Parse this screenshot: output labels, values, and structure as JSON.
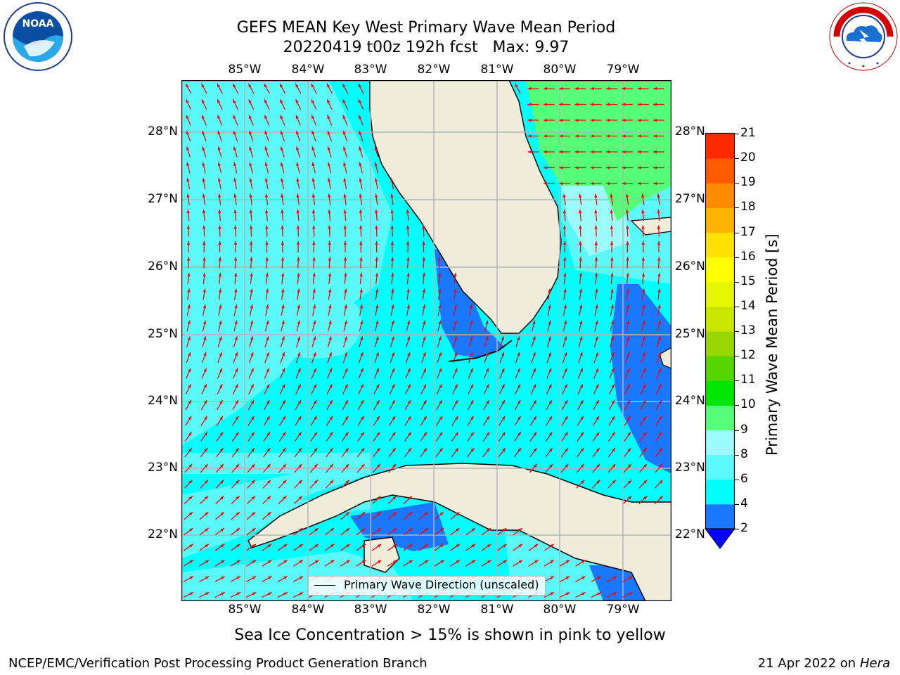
{
  "header": {
    "title_line1": "GEFS MEAN Key West Primary Wave Mean Period",
    "title_line2": "20220419 t00z 192h fcst   Max: 9.97"
  },
  "logos": {
    "noaa_text": "NOAA",
    "noaa_ring_text": "NATIONAL OCEANIC AND ATMOSPHERIC ADMINISTRATION · U.S. DEPARTMENT OF COMMERCE",
    "nws_ring_text": "NATIONAL WEATHER SERVICE"
  },
  "map": {
    "x_ticks": [
      "85°W",
      "84°W",
      "83°W",
      "82°W",
      "81°W",
      "80°W",
      "79°W"
    ],
    "y_ticks": [
      "28°N",
      "27°N",
      "26°N",
      "25°N",
      "24°N",
      "23°N",
      "22°N"
    ],
    "legend_label": "Primary Wave Direction (unscaled)",
    "arrow_color": "#ff0000",
    "land_color": "#efecdc"
  },
  "colorbar": {
    "label": "Primary Wave Mean Period [s]",
    "ticks": [
      "2",
      "4",
      "6",
      "8",
      "9",
      "10",
      "11",
      "12",
      "13",
      "14",
      "15",
      "16",
      "17",
      "18",
      "19",
      "20",
      "21"
    ],
    "colors": [
      "#1a78ff",
      "#00ffff",
      "#5af8f8",
      "#9cfcfc",
      "#55ff77",
      "#00e600",
      "#55d500",
      "#99d500",
      "#c8e600",
      "#e6f500",
      "#ffff00",
      "#ffe000",
      "#ffb400",
      "#ff8c00",
      "#ff5a00",
      "#ff2a00",
      "#ff0000"
    ],
    "extend_color": "#0000ff"
  },
  "notes": {
    "ice": "Sea Ice Concentration > 15% is shown in pink to yellow"
  },
  "footer": {
    "left": "NCEP/EMC/Verification Post Processing Product Generation Branch",
    "right_date": "21 Apr 2022 on ",
    "right_host": "Hera"
  }
}
